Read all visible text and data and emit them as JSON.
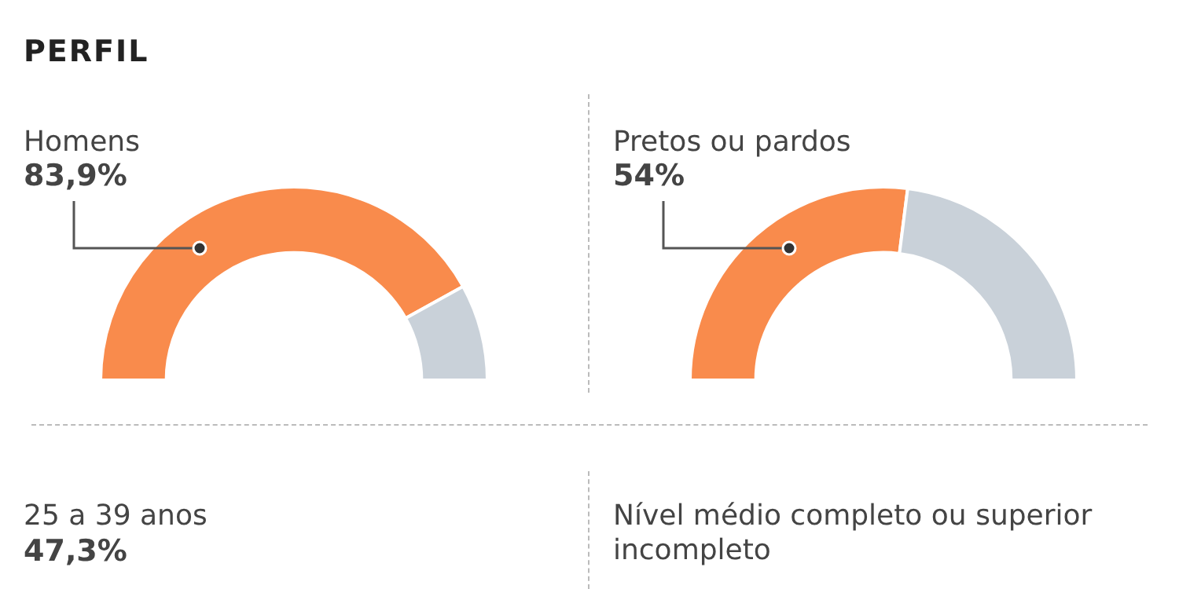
{
  "chart_data": [
    {
      "type": "donut",
      "title": "PERFIL",
      "categories": [
        "Homens",
        null
      ],
      "values": [
        83.9,
        16.1
      ],
      "colors": [
        "#f98b4c",
        "#c9d1d9"
      ],
      "value_labels": [
        "83,9%",
        null
      ]
    },
    {
      "type": "donut",
      "categories": [
        "Pretos ou pardos",
        null
      ],
      "values": [
        54,
        46
      ],
      "colors": [
        "#f98b4c",
        "#c9d1d9"
      ],
      "value_labels": [
        "54%",
        null
      ]
    },
    {
      "type": "other",
      "title": "25 a 39 anos",
      "annotations": [
        "47,3%"
      ]
    },
    {
      "type": "other",
      "title": "Nível médio completo ou superior incompleto"
    }
  ]
}
